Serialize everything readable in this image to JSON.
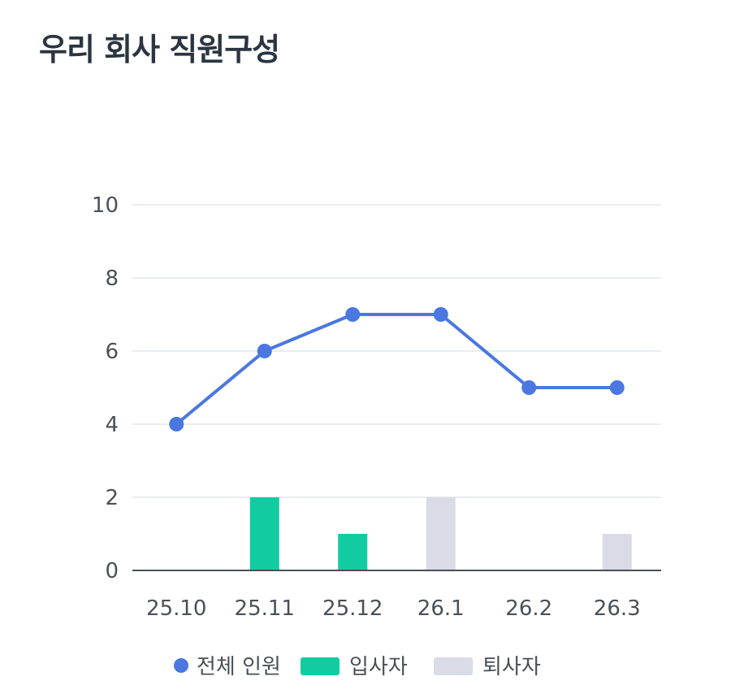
{
  "page": {
    "title": "우리 회사 직원구성"
  },
  "chart_data": {
    "type": "bar+line",
    "categories": [
      "25.10",
      "25.11",
      "25.12",
      "26.1",
      "26.2",
      "26.3"
    ],
    "series": [
      {
        "name": "전체 인원",
        "type": "line",
        "color": "#4a77e0",
        "values": [
          4,
          6,
          7,
          7,
          5,
          5
        ]
      },
      {
        "name": "입사자",
        "type": "bar",
        "color": "#12cca1",
        "values": [
          0,
          2,
          1,
          0,
          0,
          0
        ]
      },
      {
        "name": "퇴사자",
        "type": "bar",
        "color": "#d9dce6",
        "values": [
          0,
          0,
          0,
          2,
          0,
          1
        ]
      }
    ],
    "yticks": [
      0,
      2,
      4,
      6,
      8,
      10
    ],
    "ylim": [
      0,
      10
    ],
    "grid": true,
    "legend_position": "bottom"
  }
}
